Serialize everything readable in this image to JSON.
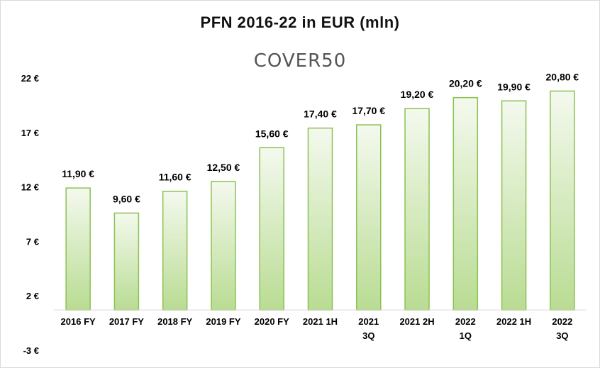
{
  "chart_data": {
    "type": "bar",
    "title": "PFN 2016-22 in EUR (mln)",
    "logo_text": "COVER50",
    "categories": [
      [
        "2016 FY"
      ],
      [
        "2017 FY"
      ],
      [
        "2018 FY"
      ],
      [
        "2019 FY"
      ],
      [
        "2020 FY"
      ],
      [
        "2021 1H"
      ],
      [
        "2021",
        "3Q"
      ],
      [
        "2021 2H"
      ],
      [
        "2022",
        "1Q"
      ],
      [
        "2022 1H"
      ],
      [
        "2022",
        "3Q"
      ]
    ],
    "values": [
      11.9,
      9.6,
      11.6,
      12.5,
      15.6,
      17.4,
      17.7,
      19.2,
      20.2,
      19.9,
      20.8
    ],
    "data_labels": [
      "11,90 €",
      "9,60 €",
      "11,60 €",
      "12,50 €",
      "15,60 €",
      "17,40 €",
      "17,70 €",
      "19,20 €",
      "20,20 €",
      "19,90 €",
      "20,80 €"
    ],
    "yticks": [
      -3,
      2,
      7,
      12,
      17,
      22
    ],
    "ytick_labels": [
      "-3 €",
      "2 €",
      "7 €",
      "12 €",
      "17 €",
      "22 €"
    ],
    "ylim": [
      -3,
      22
    ],
    "grid": false,
    "colors": {
      "bar_border": "#8cc152",
      "bar_fill_top": "#f4f9ee",
      "bar_fill_bottom": "#b9dc93"
    }
  }
}
